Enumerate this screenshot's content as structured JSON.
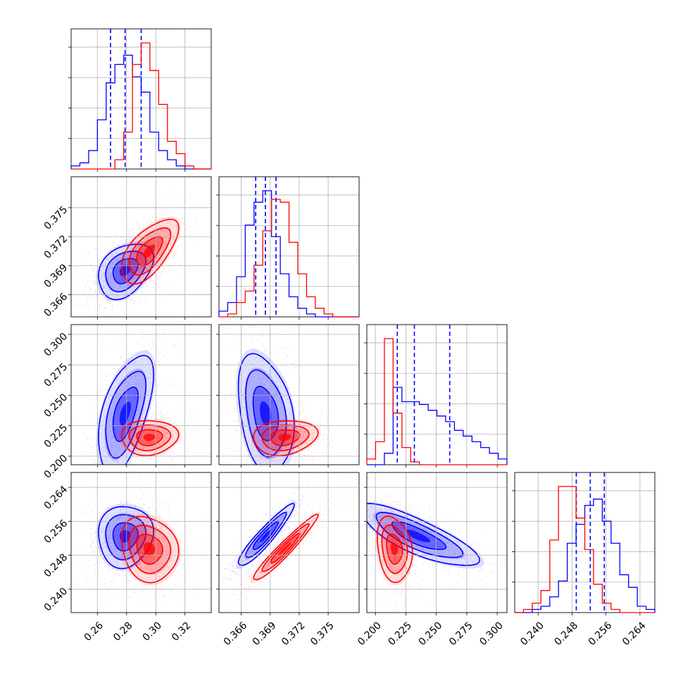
{
  "chart_data": {
    "type": "corner",
    "title": "",
    "grid": true,
    "parameters": [
      {
        "range": [
          0.242,
          0.338
        ],
        "ticks": [
          0.26,
          0.28,
          0.3,
          0.32
        ],
        "tick_labels": [
          "0.26",
          "0.28",
          "0.30",
          "0.32"
        ]
      },
      {
        "range": [
          0.3637,
          0.3782
        ],
        "ticks": [
          0.366,
          0.369,
          0.372,
          0.375
        ],
        "tick_labels": [
          "0.366",
          "0.369",
          "0.372",
          "0.375"
        ]
      },
      {
        "range": [
          0.193,
          0.308
        ],
        "ticks": [
          0.2,
          0.225,
          0.25,
          0.275,
          0.3
        ],
        "tick_labels": [
          "0.200",
          "0.225",
          "0.250",
          "0.275",
          "0.300"
        ]
      },
      {
        "range": [
          0.2345,
          0.2675
        ],
        "ticks": [
          0.24,
          0.248,
          0.256,
          0.264
        ],
        "tick_labels": [
          "0.240",
          "0.248",
          "0.256",
          "0.264"
        ]
      }
    ],
    "series": [
      {
        "color": "#0000ff",
        "mean": [
          0.279,
          0.3685,
          0.235,
          0.2525
        ],
        "std": [
          0.0085,
          0.0013,
          0.022,
          0.0033
        ],
        "quantiles": [
          [
            0.269,
            0.279,
            0.29
          ],
          [
            0.3675,
            0.3685,
            0.3696
          ],
          [
            0.218,
            0.232,
            0.261
          ],
          [
            0.249,
            0.2523,
            0.2556
          ]
        ],
        "histograms": [
          [
            1,
            2,
            6,
            16,
            28,
            34,
            37,
            30,
            25,
            12,
            6,
            3,
            1,
            0,
            0,
            0
          ],
          [
            2,
            5,
            14,
            32,
            40,
            44,
            28,
            15,
            7,
            3,
            1,
            0,
            0,
            0,
            0,
            0
          ],
          [
            0,
            0,
            4,
            27,
            22,
            22,
            21,
            19,
            17,
            15,
            12,
            10,
            8,
            6,
            4,
            2
          ],
          [
            0,
            0,
            1,
            2,
            5,
            10,
            22,
            28,
            34,
            36,
            29,
            22,
            12,
            8,
            2,
            1
          ]
        ]
      },
      {
        "color": "#ff0000",
        "mean": [
          0.2955,
          0.3705,
          0.2155,
          0.2495
        ],
        "std": [
          0.0088,
          0.0015,
          0.0065,
          0.0035
        ],
        "histograms": [
          [
            0,
            0,
            0,
            0,
            0,
            3,
            12,
            34,
            41,
            32,
            21,
            9,
            5,
            1,
            0,
            0
          ],
          [
            0,
            1,
            5,
            9,
            18,
            30,
            41,
            40,
            26,
            15,
            7,
            3,
            1,
            0,
            0,
            0
          ],
          [
            2,
            8,
            44,
            18,
            6,
            1,
            0,
            0,
            0,
            0,
            0,
            0,
            0,
            0,
            0,
            0
          ],
          [
            0,
            1,
            3,
            7,
            23,
            40,
            40,
            30,
            20,
            9,
            3,
            1,
            0,
            0,
            0,
            0
          ]
        ]
      }
    ],
    "pairs": [
      {
        "row": 1,
        "col": 0,
        "blue": {
          "rho": 0.35
        },
        "red": {
          "rho": 0.62
        }
      },
      {
        "row": 2,
        "col": 0,
        "blue": {
          "rho": 0.55
        },
        "red": {
          "rho": 0.05
        }
      },
      {
        "row": 2,
        "col": 1,
        "blue": {
          "rho": -0.3
        },
        "red": {
          "rho": 0.15
        }
      },
      {
        "row": 3,
        "col": 0,
        "blue": {
          "rho": 0.05
        },
        "red": {
          "rho": -0.15
        }
      },
      {
        "row": 3,
        "col": 1,
        "blue": {
          "rho": 0.93
        },
        "red": {
          "rho": 0.96
        }
      },
      {
        "row": 3,
        "col": 2,
        "blue": {
          "rho": -0.8
        },
        "red": {
          "rho": -0.2
        }
      }
    ]
  }
}
